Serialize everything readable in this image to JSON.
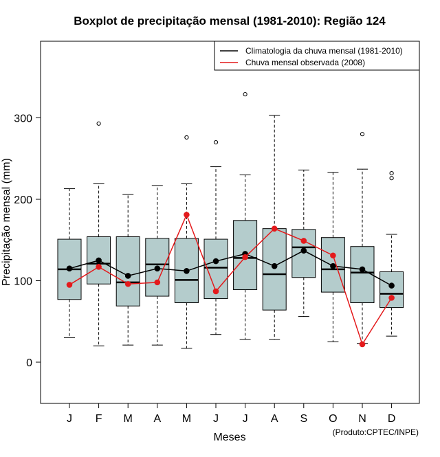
{
  "chart_data": {
    "type": "boxplot",
    "title": "Boxplot de precipitação mensal (1981-2010): Região 124",
    "xlabel": "Meses",
    "ylabel": "Precipitação mensal (mm)",
    "ylim": [
      -50,
      385
    ],
    "yticks": [
      0,
      100,
      200,
      300
    ],
    "categories": [
      "J",
      "F",
      "M",
      "A",
      "M",
      "J",
      "J",
      "A",
      "S",
      "O",
      "N",
      "D"
    ],
    "boxes": [
      {
        "whisker_low": 30,
        "q1": 77,
        "median": 114,
        "q3": 151,
        "whisker_high": 213,
        "outliers": []
      },
      {
        "whisker_low": 20,
        "q1": 96,
        "median": 121,
        "q3": 154,
        "whisker_high": 219,
        "outliers": [
          293
        ]
      },
      {
        "whisker_low": 21,
        "q1": 69,
        "median": 98,
        "q3": 154,
        "whisker_high": 206,
        "outliers": []
      },
      {
        "whisker_low": 21,
        "q1": 81,
        "median": 120,
        "q3": 152,
        "whisker_high": 217,
        "outliers": []
      },
      {
        "whisker_low": 17,
        "q1": 73,
        "median": 101,
        "q3": 152,
        "whisker_high": 219,
        "outliers": [
          276
        ]
      },
      {
        "whisker_low": 34,
        "q1": 78,
        "median": 116,
        "q3": 151,
        "whisker_high": 240,
        "outliers": [
          270
        ]
      },
      {
        "whisker_low": 28,
        "q1": 89,
        "median": 128,
        "q3": 174,
        "whisker_high": 230,
        "outliers": [
          329
        ]
      },
      {
        "whisker_low": 28,
        "q1": 64,
        "median": 108,
        "q3": 164,
        "whisker_high": 303,
        "outliers": []
      },
      {
        "whisker_low": 56,
        "q1": 104,
        "median": 141,
        "q3": 163,
        "whisker_high": 236,
        "outliers": []
      },
      {
        "whisker_low": 25,
        "q1": 86,
        "median": 114,
        "q3": 153,
        "whisker_high": 233,
        "outliers": []
      },
      {
        "whisker_low": 23,
        "q1": 73,
        "median": 110,
        "q3": 142,
        "whisker_high": 237,
        "outliers": [
          280
        ]
      },
      {
        "whisker_low": 32,
        "q1": 67,
        "median": 84,
        "q3": 111,
        "whisker_high": 157,
        "outliers": [
          226,
          232
        ]
      }
    ],
    "series": [
      {
        "name": "Climatologia da chuva mensal (1981-2010)",
        "color": "#000000",
        "values": [
          115,
          125,
          106,
          115,
          112,
          124,
          133,
          118,
          137,
          118,
          114,
          94
        ]
      },
      {
        "name": "Chuva mensal observada (2008)",
        "color": "#e41a1c",
        "values": [
          95,
          117,
          96,
          98,
          181,
          87,
          129,
          164,
          149,
          131,
          22,
          79
        ]
      }
    ],
    "box_color": "#b4cccc",
    "legend_position": "top-right",
    "credit": "(Produto:CPTEC/INPE)"
  }
}
